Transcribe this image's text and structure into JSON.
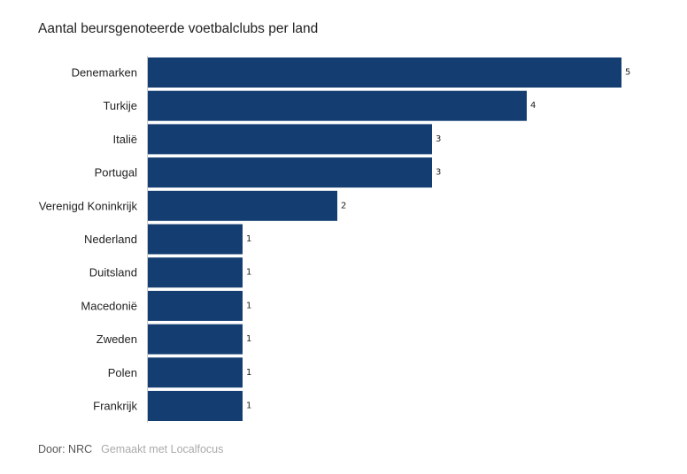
{
  "chart_data": {
    "type": "bar",
    "orientation": "horizontal",
    "title": "Aantal beursgenoteerde voetbalclubs per land",
    "categories": [
      "Denemarken",
      "Turkije",
      "Italië",
      "Portugal",
      "Verenigd Koninkrijk",
      "Nederland",
      "Duitsland",
      "Macedonië",
      "Zweden",
      "Polen",
      "Frankrijk"
    ],
    "values": [
      5,
      4,
      3,
      3,
      2,
      1,
      1,
      1,
      1,
      1,
      1
    ],
    "xlim": [
      0,
      5
    ],
    "xlabel": "",
    "ylabel": "",
    "grid": false,
    "bar_color": "#143e72"
  },
  "footer": {
    "source": "Door: NRC",
    "credit": "Gemaakt met Localfocus"
  }
}
